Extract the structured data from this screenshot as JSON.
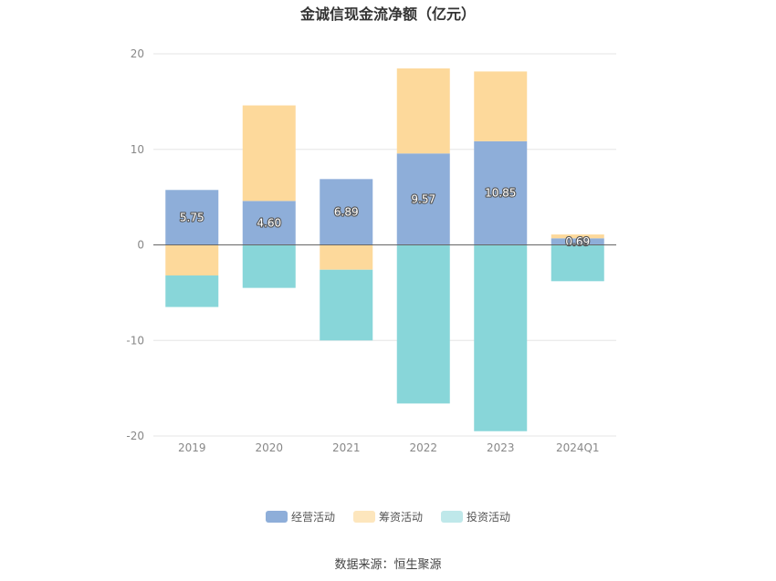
{
  "chart_data": {
    "type": "bar",
    "stacked": true,
    "title": "金诚信现金流净额（亿元）",
    "categories": [
      "2019",
      "2020",
      "2021",
      "2022",
      "2023",
      "2024Q1"
    ],
    "series": [
      {
        "name": "经营活动",
        "color": "#8eaed9",
        "values": [
          5.75,
          4.6,
          6.89,
          9.57,
          10.85,
          0.69
        ]
      },
      {
        "name": "筹资活动",
        "color": "#fdd99b",
        "values": [
          -3.2,
          10.0,
          -2.6,
          8.9,
          7.3,
          0.4
        ]
      },
      {
        "name": "投资活动",
        "color": "#88d6d9",
        "values": [
          -3.3,
          -4.5,
          -7.4,
          -16.6,
          -19.5,
          -3.8
        ]
      }
    ],
    "data_labels": [
      "5.75",
      "4.60",
      "6.89",
      "9.57",
      "10.85",
      "0.69"
    ],
    "yticks": [
      "20",
      "10",
      "0",
      "-10",
      "-20"
    ],
    "ylim": [
      -20,
      20
    ],
    "grid": true,
    "legend_position": "bottom"
  },
  "legend": {
    "operating": "经营活动",
    "financing": "筹资活动",
    "investing": "投资活动"
  },
  "colors": {
    "operating": "#8eaed9",
    "financing": "#fdd99b",
    "investing": "#88d6d9",
    "legend_investing": "#bfe8ea",
    "legend_financing": "#fde6bd"
  },
  "source": "数据来源：恒生聚源"
}
